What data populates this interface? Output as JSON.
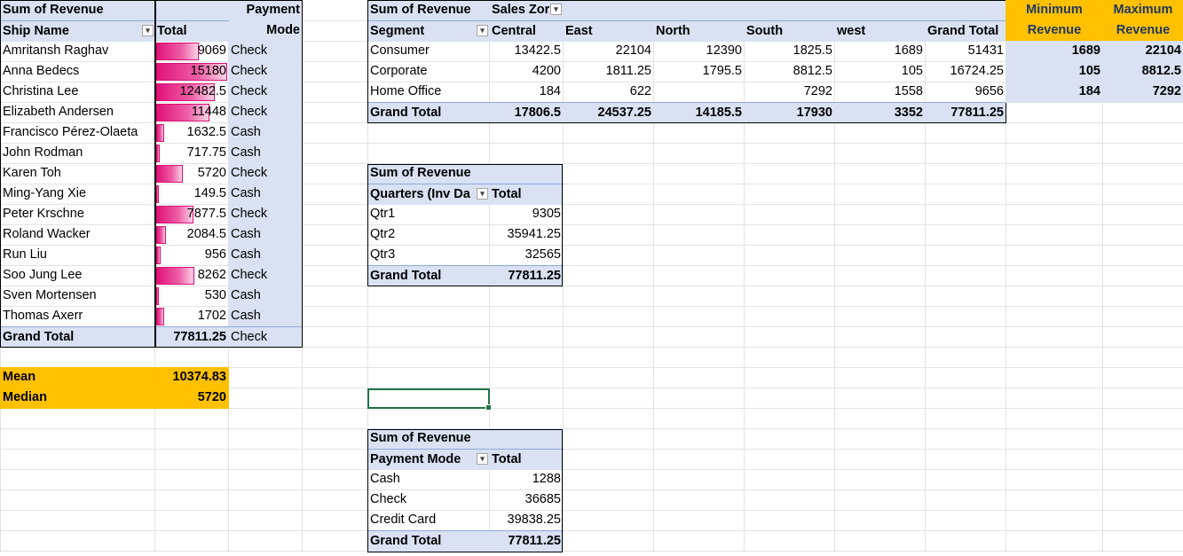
{
  "pivot_ship": {
    "sum_label": "Sum of Revenue",
    "col_label": "Payment",
    "col_label2": "Mode",
    "row_label": "Ship Name",
    "total_label": "Total",
    "rows": [
      {
        "name": "Amritansh Raghav",
        "total": "9069",
        "mode": "Check",
        "pct": 0.6
      },
      {
        "name": "Anna Bedecs",
        "total": "15180",
        "mode": "Check",
        "pct": 1.0
      },
      {
        "name": "Christina Lee",
        "total": "12482.5",
        "mode": "Check",
        "pct": 0.82
      },
      {
        "name": "Elizabeth Andersen",
        "total": "11448",
        "mode": "Check",
        "pct": 0.75
      },
      {
        "name": "Francisco Pérez-Olaeta",
        "total": "1632.5",
        "mode": "Cash",
        "pct": 0.11
      },
      {
        "name": "John Rodman",
        "total": "717.75",
        "mode": "Cash",
        "pct": 0.05
      },
      {
        "name": "Karen Toh",
        "total": "5720",
        "mode": "Check",
        "pct": 0.38
      },
      {
        "name": "Ming-Yang Xie",
        "total": "149.5",
        "mode": "Cash",
        "pct": 0.01
      },
      {
        "name": "Peter Krschne",
        "total": "7877.5",
        "mode": "Check",
        "pct": 0.52
      },
      {
        "name": "Roland Wacker",
        "total": "2084.5",
        "mode": "Cash",
        "pct": 0.14
      },
      {
        "name": "Run Liu",
        "total": "956",
        "mode": "Cash",
        "pct": 0.06
      },
      {
        "name": "Soo Jung Lee",
        "total": "8262",
        "mode": "Check",
        "pct": 0.54
      },
      {
        "name": "Sven Mortensen",
        "total": "530",
        "mode": "Cash",
        "pct": 0.035
      },
      {
        "name": "Thomas Axerr",
        "total": "1702",
        "mode": "Cash",
        "pct": 0.11
      }
    ],
    "grand_label": "Grand Total",
    "grand_total": "77811.25",
    "grand_mode": "Check"
  },
  "stats": {
    "mean_label": "Mean",
    "mean_value": "10374.83",
    "median_label": "Median",
    "median_value": "5720"
  },
  "pivot_zone": {
    "sum_label": "Sum of Revenue",
    "col_label": "Sales Zor",
    "row_label": "Segment",
    "columns": [
      "Central",
      "East",
      "North",
      "South",
      "west",
      "Grand Total"
    ],
    "rows": [
      {
        "name": "Consumer",
        "values": [
          "13422.5",
          "22104",
          "12390",
          "1825.5",
          "1689",
          "51431"
        ]
      },
      {
        "name": "Corporate",
        "values": [
          "4200",
          "1811.25",
          "1795.5",
          "8812.5",
          "105",
          "16724.25"
        ]
      },
      {
        "name": "Home Office",
        "values": [
          "184",
          "622",
          "",
          "7292",
          "1558",
          "9656"
        ]
      }
    ],
    "grand_label": "Grand Total",
    "grand_values": [
      "17806.5",
      "24537.25",
      "14185.5",
      "17930",
      "3352",
      "77811.25"
    ]
  },
  "minmax": {
    "min_label1": "Minimum",
    "min_label2": "Revenue",
    "max_label1": "Maximum",
    "max_label2": "Revenue",
    "rows": [
      [
        "1689",
        "22104"
      ],
      [
        "105",
        "8812.5"
      ],
      [
        "184",
        "7292"
      ]
    ]
  },
  "pivot_quarter": {
    "sum_label": "Sum of Revenue",
    "row_label": "Quarters (Inv Da",
    "total_label": "Total",
    "rows": [
      [
        "Qtr1",
        "9305"
      ],
      [
        "Qtr2",
        "35941.25"
      ],
      [
        "Qtr3",
        "32565"
      ]
    ],
    "grand_label": "Grand Total",
    "grand_total": "77811.25"
  },
  "pivot_payment": {
    "sum_label": "Sum of Revenue",
    "row_label": "Payment Mode",
    "total_label": "Total",
    "rows": [
      [
        "Cash",
        "1288"
      ],
      [
        "Check",
        "36685"
      ],
      [
        "Credit Card",
        "39838.25"
      ]
    ],
    "grand_label": "Grand Total",
    "grand_total": "77811.25"
  },
  "colors": {
    "header": "#d9e1f2",
    "accent": "#ffc000",
    "databar": "#e0127a",
    "selection": "#217346"
  }
}
